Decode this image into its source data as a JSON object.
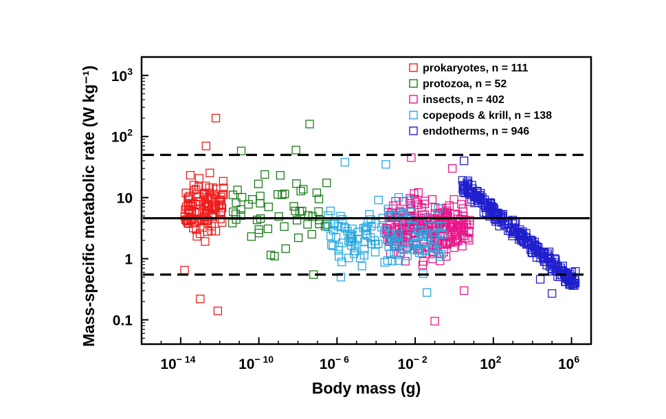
{
  "chart_data": {
    "type": "scatter",
    "xlabel": "Body mass (g)",
    "ylabel": "Mass-specific metabolic rate (W kg⁻¹)",
    "x_scale": "log",
    "y_scale": "log",
    "xlim": [
      1e-16,
      10000000.0
    ],
    "ylim": [
      0.04,
      2000
    ],
    "x_ticks": [
      {
        "value": 1e-14,
        "base": "10",
        "exp": "− 14"
      },
      {
        "value": 1e-10,
        "base": "10",
        "exp": "− 10"
      },
      {
        "value": 1e-06,
        "base": "10",
        "exp": "− 6"
      },
      {
        "value": 0.01,
        "base": "10",
        "exp": "− 2"
      },
      {
        "value": 100.0,
        "base": "10",
        "exp": "2"
      },
      {
        "value": 1000000.0,
        "base": "10",
        "exp": "6"
      }
    ],
    "y_ticks": [
      {
        "value": 0.1,
        "label": "0.1"
      },
      {
        "value": 1,
        "label": "1"
      },
      {
        "value": 10,
        "label": "10"
      },
      {
        "value": 100,
        "base": "10",
        "exp": "2"
      },
      {
        "value": 1000,
        "base": "10",
        "exp": "3"
      }
    ],
    "reference_lines": [
      {
        "y": 50,
        "style": "dashed"
      },
      {
        "y": 4.6,
        "style": "solid"
      },
      {
        "y": 0.55,
        "style": "dashed"
      }
    ],
    "legend_position": "top-right",
    "series": [
      {
        "name": "prokaryotes",
        "n": 111,
        "legend": "prokaryotes, n = 111",
        "color": "#ee1c1c",
        "x_log10_range": [
          -13.8,
          -11.8
        ],
        "x_log10_center": -12.7,
        "y_log10_center": 0.85,
        "y_log10_spread": 0.35,
        "notable_points": [
          [
            -12.2,
            200
          ],
          [
            -12.1,
            0.14
          ],
          [
            -12.7,
            70
          ],
          [
            -13.8,
            0.65
          ],
          [
            -13.0,
            0.22
          ]
        ]
      },
      {
        "name": "protozoa",
        "n": 52,
        "legend": "protozoa, n = 52",
        "color": "#1a7a1a",
        "x_log10_range": [
          -11.5,
          -6.5
        ],
        "x_log10_center": -9.0,
        "y_log10_center": 0.8,
        "y_log10_spread": 0.45,
        "notable_points": [
          [
            -7.4,
            160
          ],
          [
            -8.1,
            60
          ],
          [
            -10.9,
            58
          ],
          [
            -7.2,
            0.55
          ],
          [
            -9.2,
            1.1
          ]
        ]
      },
      {
        "name": "insects",
        "n": 402,
        "legend": "insects, n = 402",
        "color": "#e8178a",
        "x_log10_range": [
          -3.5,
          0.8
        ],
        "x_log10_center": -1.3,
        "y_log10_center": 0.5,
        "y_log10_spread": 0.35,
        "notable_points": [
          [
            -2.2,
            45
          ],
          [
            -0.1,
            30
          ],
          [
            -1.0,
            0.095
          ],
          [
            0.5,
            0.3
          ]
        ]
      },
      {
        "name": "copepods & krill",
        "n": 138,
        "legend": "copepods & krill, n = 138",
        "color": "#29a8e0",
        "x_log10_range": [
          -6.5,
          -0.5
        ],
        "x_log10_center": -2.3,
        "y_log10_center": 0.4,
        "y_log10_spread": 0.4,
        "notable_points": [
          [
            -5.6,
            38
          ],
          [
            -3.5,
            35
          ],
          [
            -5.8,
            0.5
          ],
          [
            -1.4,
            0.28
          ]
        ]
      },
      {
        "name": "endotherms",
        "n": 946,
        "legend": "endotherms, n = 946",
        "color": "#1f1fcc",
        "x_log10_range": [
          0.4,
          6.2
        ],
        "x_log10_center": 2.6,
        "y_log10_center": 0.6,
        "y_log10_slope": -0.28,
        "notable_points": [
          [
            0.5,
            40
          ],
          [
            5.0,
            0.27
          ],
          [
            6.2,
            0.62
          ],
          [
            4.4,
            0.46
          ]
        ]
      }
    ]
  }
}
